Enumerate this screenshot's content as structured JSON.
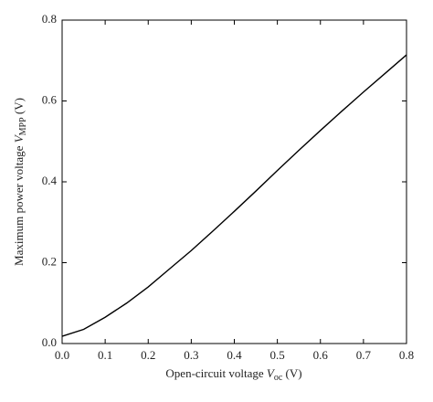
{
  "chart_data": {
    "type": "line",
    "x_label": {
      "text": "Open-circuit voltage ",
      "symbol": "V",
      "subscript": "oc",
      "unit": " (V)"
    },
    "y_label": {
      "text": "Maximum power voltage ",
      "symbol": "V",
      "subscript": "MPP",
      "unit": " (V)"
    },
    "x": [
      0,
      0.05,
      0.1,
      0.15,
      0.2,
      0.25,
      0.3,
      0.35,
      0.4,
      0.45,
      0.5,
      0.55,
      0.6,
      0.65,
      0.7,
      0.75,
      0.8
    ],
    "series": [
      {
        "color": "#000000",
        "values": [
          0.018,
          0.035,
          0.065,
          0.1,
          0.14,
          0.185,
          0.23,
          0.278,
          0.327,
          0.377,
          0.428,
          0.478,
          0.527,
          0.575,
          0.622,
          0.668,
          0.714
        ]
      }
    ],
    "xlim": [
      0,
      0.8
    ],
    "ylim": [
      0,
      0.8
    ],
    "xticks": [
      {
        "value": 0,
        "label": "0.0"
      },
      0.1,
      0.2,
      0.3,
      0.4,
      0.5,
      0.6,
      0.7,
      0.8
    ],
    "yticks": [
      {
        "value": 0,
        "label": "0.0"
      },
      0.2,
      0.4,
      0.6,
      0.8
    ],
    "grid": false
  }
}
